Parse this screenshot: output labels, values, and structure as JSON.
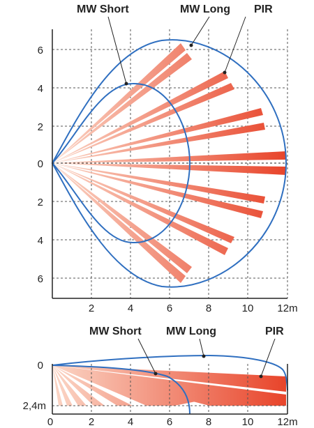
{
  "top_view": {
    "labels": {
      "mw_short": "MW Short",
      "mw_long": "MW Long",
      "pir": "PIR"
    },
    "y_ticks": [
      "6",
      "4",
      "2",
      "0",
      "2",
      "4",
      "6"
    ],
    "x_ticks": [
      "2",
      "4",
      "6",
      "8",
      "10",
      "12m"
    ]
  },
  "side_view": {
    "labels": {
      "mw_short": "MW Short",
      "mw_long": "MW Long",
      "pir": "PIR"
    },
    "y_ticks": [
      "0",
      "2,4m"
    ],
    "x_ticks": [
      "0",
      "2",
      "4",
      "6",
      "8",
      "10",
      "12m"
    ]
  },
  "colors": {
    "beam_start": "#fbd6c6",
    "beam_end": "#e8442a",
    "zone_line": "#2f6fc0",
    "grid": "#555555",
    "axis": "#222222"
  }
}
